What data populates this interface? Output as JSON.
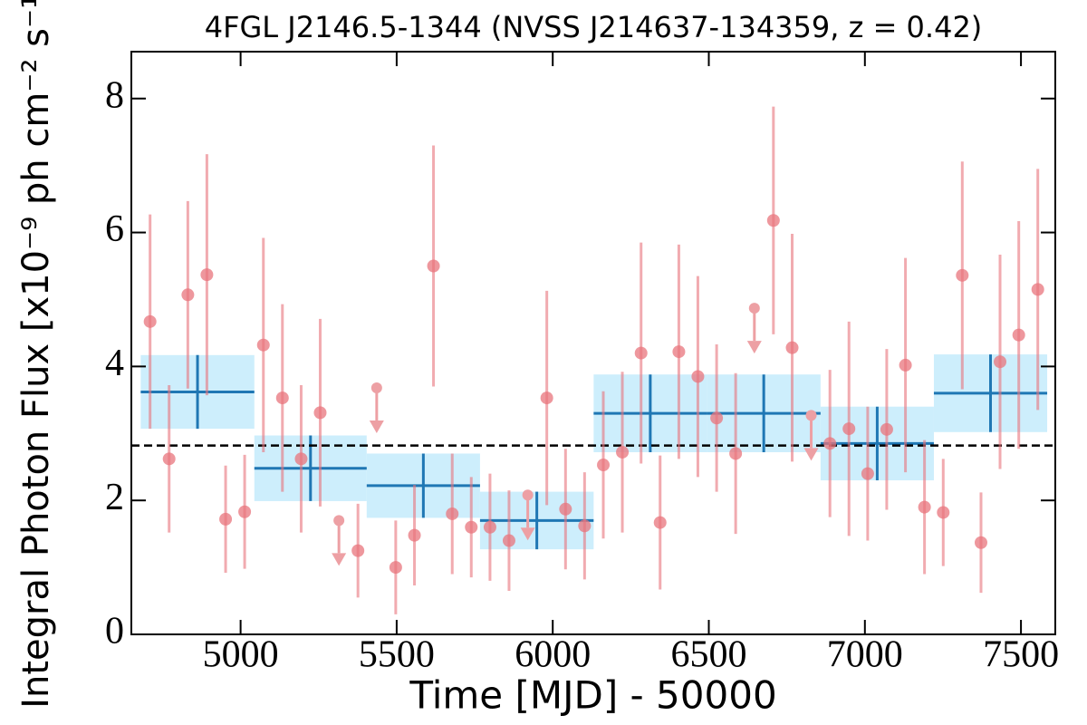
{
  "chart_data": {
    "type": "lightcurve",
    "title": "4FGL J2146.5-1344 (NVSS J214637-134359, z = 0.42)",
    "x_label": "Time [MJD] - 50000",
    "y_label": "Integral Photon Flux [x10⁻⁹ ph cm⁻² s⁻¹]",
    "xlim": [
      4650,
      7610
    ],
    "ylim": [
      0,
      8.7
    ],
    "xticks": [
      5000,
      5500,
      6000,
      6500,
      7000,
      7500
    ],
    "yticks": [
      0,
      2,
      4,
      6,
      8
    ],
    "detections": {
      "color": "#e8747c",
      "x": [
        4710,
        4771,
        4831,
        4892,
        4952,
        5013,
        5073,
        5134,
        5194,
        5255,
        5376,
        5497,
        5557,
        5618,
        5678,
        5739,
        5799,
        5860,
        5981,
        6041,
        6102,
        6162,
        6223,
        6283,
        6344,
        6404,
        6465,
        6525,
        6586,
        6707,
        6767,
        6888,
        6949,
        7009,
        7070,
        7130,
        7191,
        7251,
        7312,
        7372,
        7433,
        7493,
        7554
      ],
      "values": [
        4.67,
        2.62,
        5.07,
        5.37,
        1.72,
        1.83,
        4.32,
        3.53,
        2.62,
        3.31,
        1.25,
        1.0,
        1.48,
        5.5,
        1.8,
        1.6,
        1.6,
        1.4,
        3.53,
        1.87,
        1.62,
        2.53,
        2.72,
        4.2,
        1.67,
        4.22,
        3.85,
        3.23,
        2.7,
        6.18,
        4.28,
        2.85,
        3.07,
        2.4,
        3.06,
        4.02,
        1.9,
        1.82,
        5.36,
        1.37,
        4.07,
        4.47,
        5.15
      ],
      "errors": [
        1.6,
        1.1,
        1.4,
        1.8,
        0.8,
        0.85,
        1.6,
        1.4,
        1.1,
        1.4,
        0.7,
        0.7,
        0.75,
        1.8,
        0.9,
        0.75,
        0.8,
        0.75,
        1.6,
        0.9,
        0.8,
        1.1,
        1.2,
        1.65,
        1.0,
        1.6,
        1.5,
        1.1,
        1.2,
        1.7,
        1.7,
        1.1,
        1.6,
        1.0,
        1.2,
        1.6,
        1.0,
        0.8,
        1.7,
        0.75,
        1.6,
        1.7,
        1.8
      ]
    },
    "upper_limits": {
      "color": "#eda0a4",
      "x": [
        5315,
        5436,
        5920,
        6646,
        6828
      ],
      "values": [
        1.7,
        3.68,
        2.08,
        4.87,
        3.27
      ]
    },
    "blocks": {
      "color": "#1f77b4",
      "fill": "#cdeefc",
      "start": [
        4680,
        5044,
        5404,
        5767,
        6131,
        6494,
        6858,
        7221
      ],
      "end": [
        5044,
        5404,
        5767,
        6131,
        6494,
        6858,
        7221,
        7584
      ],
      "values": [
        3.62,
        2.48,
        2.22,
        1.7,
        3.3,
        3.3,
        2.85,
        3.6
      ],
      "errors": [
        0.55,
        0.49,
        0.48,
        0.43,
        0.58,
        0.58,
        0.55,
        0.58
      ]
    },
    "mean_flux": 2.82
  }
}
